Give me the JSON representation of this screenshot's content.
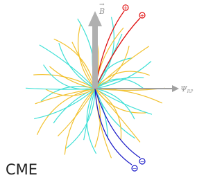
{
  "b_field": {
    "symbol": "B",
    "vector_mark": "→"
  },
  "reaction_plane": {
    "symbol": "Ψ",
    "subscript": "RP"
  },
  "charges": {
    "positive": "+",
    "negative": "−"
  },
  "caption": "CME"
}
